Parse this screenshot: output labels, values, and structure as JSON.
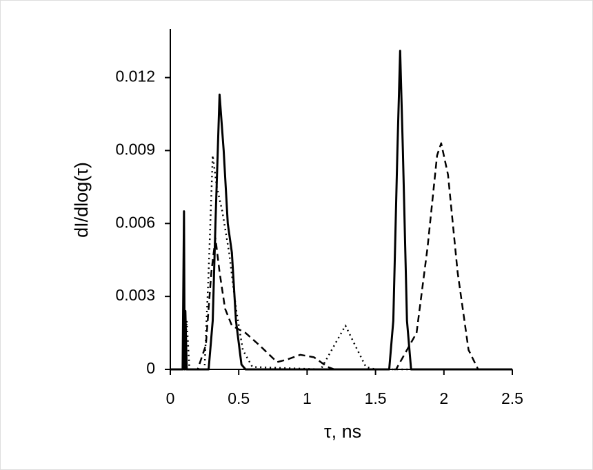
{
  "chart_data": {
    "type": "line",
    "xlabel": "τ, ns",
    "ylabel": "dI/dlog(τ)",
    "xlim": [
      0,
      2.5
    ],
    "xticks": [
      0,
      0.5,
      1,
      1.5,
      2,
      2.5
    ],
    "ylim": [
      0,
      0.014
    ],
    "yticks": [
      0,
      0.003,
      0.006,
      0.009,
      0.012
    ],
    "series": [
      {
        "color": "#000000",
        "dash": "solid",
        "width": 3,
        "x": [
          0,
          0.09,
          0.1,
          0.105,
          0.11,
          0.12,
          0.28,
          0.31,
          0.33,
          0.36,
          0.39,
          0.42,
          0.45,
          0.48,
          0.52,
          0.55,
          1.6,
          1.63,
          1.66,
          1.68,
          1.7,
          1.73,
          1.76,
          2.5
        ],
        "values": [
          0,
          0,
          0.0065,
          0,
          0.0024,
          0,
          0,
          0.002,
          0.006,
          0.0113,
          0.009,
          0.006,
          0.0048,
          0.002,
          0.0002,
          0,
          0,
          0.002,
          0.009,
          0.0131,
          0.009,
          0.002,
          0,
          0
        ]
      },
      {
        "color": "#000000",
        "dash": "dotted",
        "width": 2.5,
        "x": [
          0,
          0.1,
          0.12,
          0.14,
          0.25,
          0.28,
          0.31,
          0.34,
          0.38,
          0.43,
          0.48,
          0.53,
          0.6,
          1.1,
          1.2,
          1.28,
          1.35,
          1.43,
          1.5,
          2.5
        ],
        "values": [
          0,
          0,
          0.002,
          0,
          0,
          0.004,
          0.0088,
          0.0075,
          0.0065,
          0.0048,
          0.0025,
          0.0008,
          0.0001,
          0,
          0.001,
          0.0018,
          0.001,
          0.0001,
          0,
          0
        ]
      },
      {
        "color": "#000000",
        "dash": "dashed",
        "width": 2.5,
        "x": [
          0,
          0.2,
          0.26,
          0.3,
          0.33,
          0.36,
          0.4,
          0.45,
          0.55,
          0.65,
          0.78,
          0.85,
          0.95,
          1.05,
          1.15,
          1.2,
          1.65,
          1.8,
          1.88,
          1.95,
          1.98,
          2.03,
          2.1,
          2.18,
          2.25,
          2.5
        ],
        "values": [
          0,
          0,
          0.001,
          0.004,
          0.0054,
          0.004,
          0.0025,
          0.0018,
          0.0015,
          0.001,
          0.0003,
          0.0004,
          0.0006,
          0.0005,
          0.0001,
          0,
          0,
          0.0015,
          0.005,
          0.0088,
          0.0093,
          0.008,
          0.004,
          0.0008,
          0,
          0
        ]
      }
    ]
  }
}
